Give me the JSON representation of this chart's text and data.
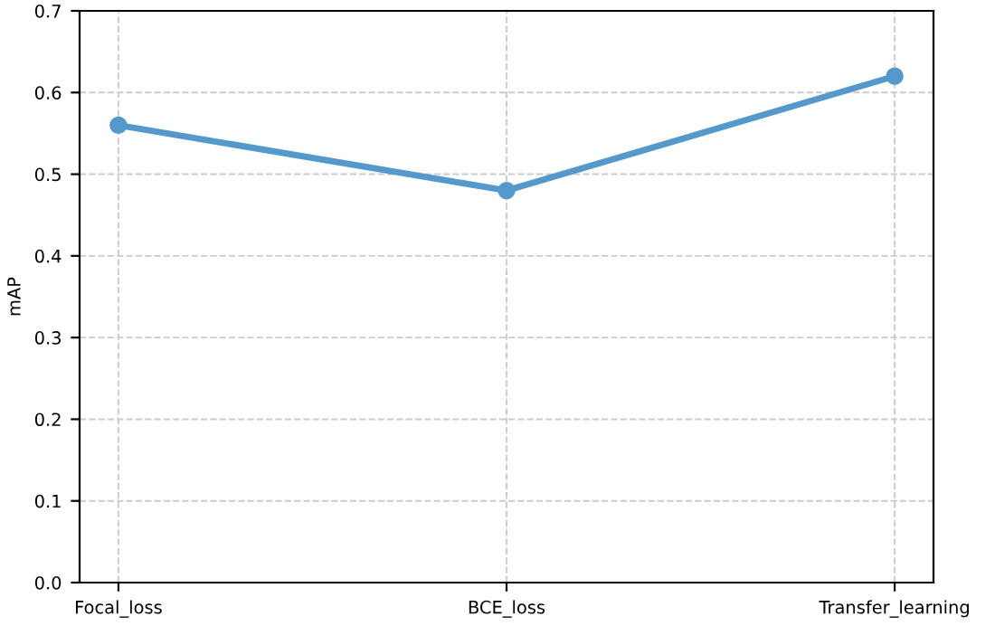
{
  "chart_data": {
    "type": "line",
    "ylabel": "mAP",
    "categories": [
      "Focal_loss",
      "BCE_loss",
      "Transfer_learning"
    ],
    "series": [
      {
        "color": "#5599cc",
        "values": [
          0.56,
          0.48,
          0.62
        ]
      }
    ],
    "ylim": [
      0,
      0.7
    ],
    "yticks": [
      {
        "value": 0,
        "label": "0.0"
      },
      0.1,
      0.2,
      0.3,
      0.4,
      0.5,
      0.6,
      0.7
    ],
    "grid": true,
    "marker": "circle",
    "line_style": "solid"
  }
}
